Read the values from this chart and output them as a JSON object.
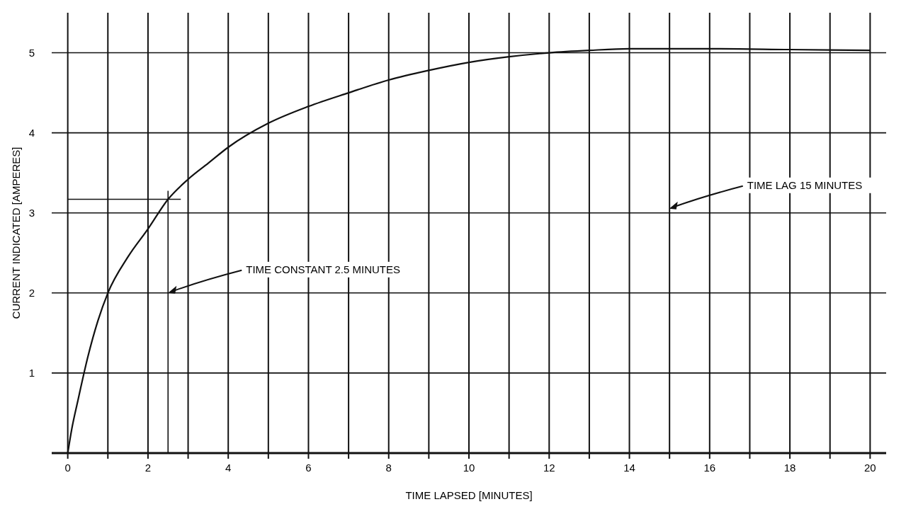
{
  "chart_data": {
    "type": "line",
    "xlabel": "TIME LAPSED [MINUTES]",
    "ylabel": "CURRENT INDICATED [AMPERES]",
    "x": [
      0,
      0.1,
      0.25,
      0.5,
      0.75,
      1,
      1.5,
      2,
      2.5,
      3,
      3.5,
      4,
      5,
      6,
      7,
      8,
      9,
      10,
      11,
      12,
      13,
      14,
      16,
      18,
      20
    ],
    "series": [
      {
        "color": "#111111",
        "values": [
          0,
          0.3,
          0.65,
          1.2,
          1.65,
          2.0,
          2.45,
          2.8,
          3.17,
          3.42,
          3.62,
          3.82,
          4.12,
          4.33,
          4.5,
          4.66,
          4.78,
          4.88,
          4.95,
          5.0,
          5.03,
          5.05,
          5.05,
          5.04,
          5.03
        ]
      }
    ],
    "xlim": [
      -0.4,
      20.4
    ],
    "ylim": [
      0,
      5.5
    ],
    "xticks": [
      0,
      {
        "value": 1,
        "label": null
      },
      2,
      {
        "value": 3,
        "label": null
      },
      4,
      {
        "value": 5,
        "label": null
      },
      6,
      {
        "value": 7,
        "label": null
      },
      8,
      {
        "value": 9,
        "label": null
      },
      10,
      {
        "value": 11,
        "label": null
      },
      12,
      {
        "value": 13,
        "label": null
      },
      14,
      {
        "value": 15,
        "label": null
      },
      16,
      {
        "value": 17,
        "label": null
      },
      18,
      {
        "value": 19,
        "label": null
      },
      20
    ],
    "yticks": [
      {
        "value": 0,
        "label": null
      },
      1,
      2,
      3,
      4,
      5
    ],
    "grid": true,
    "marker": "none",
    "line_style": "solid",
    "ref_lines": [
      {
        "axis": "x",
        "value": 2.5,
        "label": null
      },
      {
        "axis": "y",
        "value": 3.17,
        "label": null
      }
    ],
    "annotations": [
      {
        "text": "TIME CONSTANT 2.5 MINUTES",
        "x": 2.5,
        "y": 2
      },
      "TIME LAG 15 MINUTES"
    ]
  }
}
